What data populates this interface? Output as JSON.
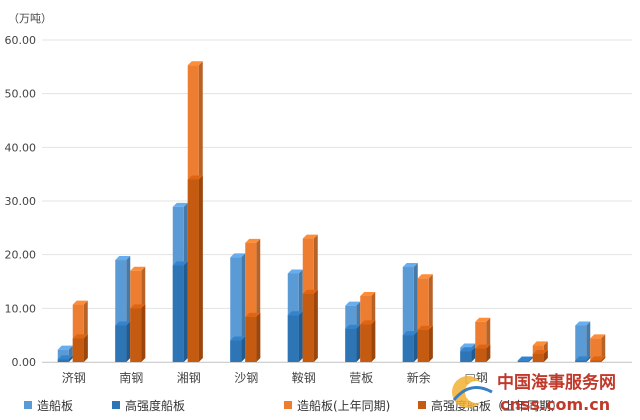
{
  "chart_data": {
    "type": "bar",
    "unit_label": "（万吨）",
    "ylim": [
      0,
      60
    ],
    "yticks": [
      "0.00",
      "10.00",
      "20.00",
      "30.00",
      "40.00",
      "50.00",
      "60.00"
    ],
    "grid": true,
    "legend_position": "bottom",
    "categories": [
      "济钢",
      "南钢",
      "湘钢",
      "沙钢",
      "鞍钢",
      "营板",
      "新余",
      "□钢",
      "",
      ""
    ],
    "series": [
      {
        "name": "造船板",
        "color": "#5b9bd5",
        "group": "current",
        "layer": "total",
        "values": [
          2.3,
          19.0,
          28.9,
          19.5,
          16.5,
          10.5,
          17.7,
          2.7,
          0.3,
          6.8
        ]
      },
      {
        "name": "高强度船板",
        "color": "#2e75b6",
        "group": "current",
        "layer": "part",
        "values": [
          0.5,
          6.8,
          18.0,
          4.0,
          8.7,
          6.2,
          5.0,
          2.0,
          0.2,
          0.3
        ]
      },
      {
        "name": "造船板(上年同期)",
        "color": "#ed7d31",
        "group": "previous",
        "layer": "total",
        "values": [
          10.7,
          17.0,
          55.3,
          22.2,
          23.0,
          12.3,
          15.6,
          7.5,
          3.1,
          4.4
        ]
      },
      {
        "name": "高强度船板（上年同期）",
        "color": "#c55a11",
        "group": "previous",
        "layer": "part",
        "values": [
          4.4,
          10.0,
          34.0,
          8.4,
          12.7,
          7.0,
          6.0,
          2.5,
          1.5,
          0.3
        ]
      }
    ]
  },
  "watermark": {
    "text_cn": "中国海事服务网",
    "text_url": "cnss.com.cn",
    "color_main": "#c0392b"
  }
}
